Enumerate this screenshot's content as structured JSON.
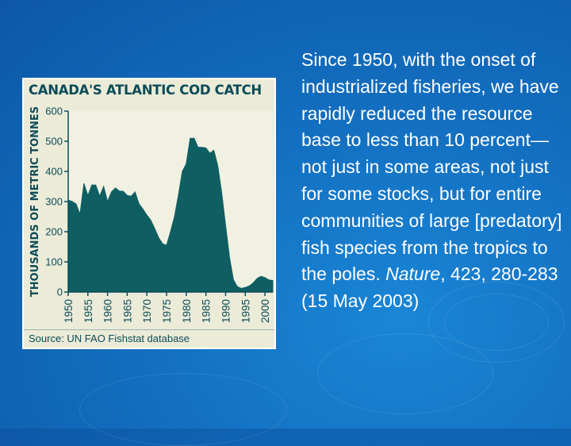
{
  "chart_data": {
    "type": "area",
    "title": "CANADA'S ATLANTIC COD CATCH",
    "ylabel": "THOUSANDS OF METRIC TONNES",
    "xlabel": "",
    "ylim": [
      0,
      600
    ],
    "xlim": [
      1950,
      2002
    ],
    "yticks": [
      0,
      100,
      200,
      300,
      400,
      500,
      600
    ],
    "xticks": [
      1950,
      1955,
      1960,
      1965,
      1970,
      1975,
      1980,
      1985,
      1990,
      1995,
      2000
    ],
    "source": "Source: UN FAO Fishstat database",
    "fill_color": "#0f5e62",
    "series": [
      {
        "x": [
          1950,
          1951,
          1952,
          1953,
          1954,
          1955,
          1956,
          1957,
          1958,
          1959,
          1960,
          1961,
          1962,
          1963,
          1964,
          1965,
          1966,
          1967,
          1968,
          1969,
          1970,
          1971,
          1972,
          1973,
          1974,
          1975,
          1976,
          1977,
          1978,
          1979,
          1980,
          1981,
          1982,
          1983,
          1984,
          1985,
          1986,
          1987,
          1988,
          1989,
          1990,
          1991,
          1992,
          1993,
          1994,
          1995,
          1996,
          1997,
          1998,
          1999,
          2000,
          2001,
          2002
        ],
        "values": [
          305,
          300,
          292,
          258,
          360,
          320,
          355,
          355,
          318,
          350,
          300,
          332,
          345,
          335,
          334,
          320,
          318,
          332,
          292,
          275,
          255,
          238,
          210,
          180,
          160,
          155,
          200,
          250,
          320,
          400,
          425,
          510,
          510,
          480,
          480,
          478,
          460,
          470,
          420,
          330,
          220,
          115,
          40,
          18,
          12,
          15,
          20,
          30,
          45,
          52,
          48,
          40,
          38
        ]
      }
    ]
  },
  "text": {
    "paragraph_main": "Since 1950, with the onset of industrialized fisheries, we have rapidly reduced the resource base to less than 10 percent—not just in some areas, not just for some stocks, but for entire communities of large [predatory] fish species from the tropics to the poles. ",
    "citation_journal": "Nature",
    "citation_rest": ", 423, 280-283 (15 May 2003)"
  }
}
